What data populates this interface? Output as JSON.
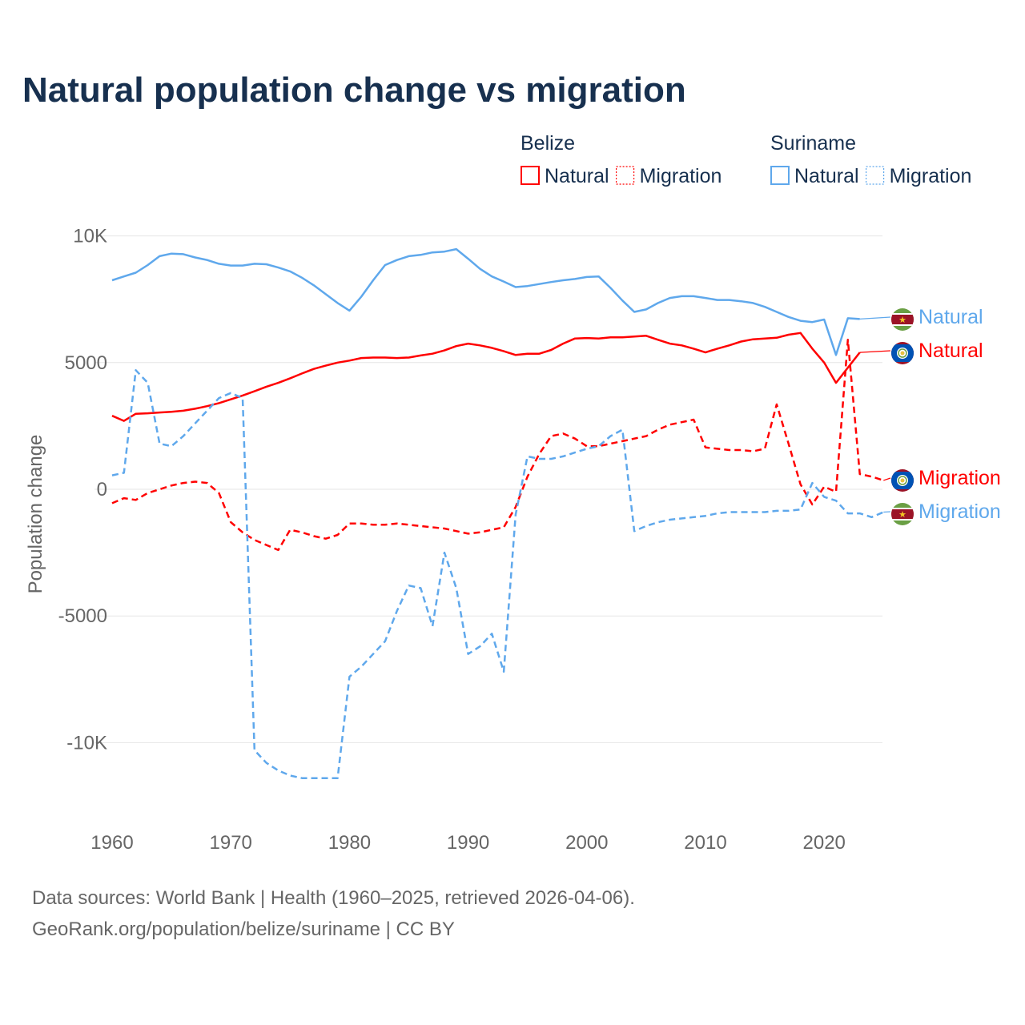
{
  "chart_data": {
    "type": "line",
    "title": "Natural population change vs migration",
    "xlabel": "",
    "ylabel": "Population change",
    "xlim": [
      1960,
      2025
    ],
    "ylim": [
      -12000,
      10000
    ],
    "x_ticks": [
      "1960",
      "1970",
      "1980",
      "1990",
      "2000",
      "2010",
      "2020"
    ],
    "y_ticks": [
      {
        "v": 10000,
        "label": "10K"
      },
      {
        "v": 5000,
        "label": "5000"
      },
      {
        "v": 0,
        "label": "0"
      },
      {
        "v": -5000,
        "label": "-5000"
      },
      {
        "v": -10000,
        "label": "-10K"
      }
    ],
    "grid": true,
    "legend": {
      "groups": [
        {
          "title": "Belize",
          "items": [
            "Natural",
            "Migration"
          ]
        },
        {
          "title": "Suriname",
          "items": [
            "Natural",
            "Migration"
          ]
        }
      ],
      "placement": "top-right"
    },
    "series": [
      {
        "name": "Suriname Natural",
        "country": "Suriname",
        "kind": "Natural",
        "color": "#5fa8ec",
        "dash": false,
        "label": "Natural",
        "start": 1960,
        "values": [
          8250,
          8400,
          8550,
          8850,
          9200,
          9300,
          9280,
          9150,
          9050,
          8900,
          8830,
          8830,
          8900,
          8880,
          8750,
          8600,
          8350,
          8050,
          7700,
          7350,
          7050,
          7600,
          8250,
          8850,
          9050,
          9200,
          9250,
          9350,
          9380,
          9480,
          9100,
          8700,
          8400,
          8200,
          7980,
          8020,
          8100,
          8180,
          8250,
          8300,
          8380,
          8400,
          7950,
          7450,
          7000,
          7100,
          7350,
          7550,
          7620,
          7620,
          7550,
          7470,
          7470,
          7420,
          7350,
          7200,
          7000,
          6800,
          6650,
          6600,
          6700,
          5300,
          6750,
          6720
        ]
      },
      {
        "name": "Belize Natural",
        "country": "Belize",
        "kind": "Natural",
        "color": "#ff0000",
        "dash": false,
        "label": "Natural",
        "start": 1960,
        "values": [
          2900,
          2700,
          2980,
          3000,
          3030,
          3060,
          3100,
          3180,
          3280,
          3400,
          3550,
          3700,
          3870,
          4050,
          4200,
          4380,
          4570,
          4750,
          4880,
          5000,
          5080,
          5180,
          5200,
          5200,
          5180,
          5200,
          5280,
          5350,
          5480,
          5650,
          5750,
          5680,
          5580,
          5450,
          5300,
          5350,
          5350,
          5500,
          5750,
          5950,
          5970,
          5950,
          6000,
          6000,
          6030,
          6060,
          5900,
          5750,
          5680,
          5550,
          5400,
          5550,
          5680,
          5830,
          5920,
          5950,
          5980,
          6100,
          6170,
          5550,
          5000,
          4200,
          4800,
          5400
        ]
      },
      {
        "name": "Belize Migration",
        "country": "Belize",
        "kind": "Migration",
        "color": "#ff0000",
        "dash": true,
        "label": "Migration",
        "start": 1960,
        "values": [
          -550,
          -350,
          -420,
          -150,
          0,
          150,
          250,
          300,
          250,
          -150,
          -1300,
          -1700,
          -2000,
          -2200,
          -2400,
          -1600,
          -1700,
          -1850,
          -1950,
          -1800,
          -1350,
          -1350,
          -1400,
          -1400,
          -1350,
          -1400,
          -1450,
          -1500,
          -1550,
          -1650,
          -1750,
          -1700,
          -1600,
          -1500,
          -700,
          500,
          1400,
          2100,
          2200,
          2000,
          1700,
          1700,
          1800,
          1900,
          2000,
          2100,
          2350,
          2550,
          2650,
          2750,
          1650,
          1600,
          1550,
          1550,
          1500,
          1600,
          3350,
          1800,
          200,
          -600,
          100,
          -100,
          5900,
          600,
          500,
          350
        ]
      },
      {
        "name": "Suriname Migration",
        "country": "Suriname",
        "kind": "Migration",
        "color": "#5fa8ec",
        "dash": true,
        "label": "Migration",
        "start": 1960,
        "values": [
          550,
          650,
          4700,
          4200,
          1800,
          1700,
          2100,
          2600,
          3100,
          3600,
          3800,
          3600,
          -10300,
          -10800,
          -11100,
          -11300,
          -11400,
          -11400,
          -11400,
          -11400,
          -7400,
          -7000,
          -6500,
          -6000,
          -4800,
          -3800,
          -3900,
          -5400,
          -2500,
          -3900,
          -6500,
          -6200,
          -5700,
          -7200,
          -1000,
          1300,
          1200,
          1200,
          1300,
          1450,
          1600,
          1700,
          2100,
          2350,
          -1650,
          -1450,
          -1300,
          -1200,
          -1150,
          -1100,
          -1050,
          -950,
          -900,
          -900,
          -900,
          -900,
          -850,
          -850,
          -800,
          250,
          -300,
          -450,
          -950,
          -950,
          -1100,
          -900
        ]
      }
    ]
  },
  "footer": {
    "line1": "Data sources: World Bank | Health (1960–2025, retrieved 2026-04-06).",
    "line2": "GeoRank.org/population/belize/suriname | CC BY"
  }
}
